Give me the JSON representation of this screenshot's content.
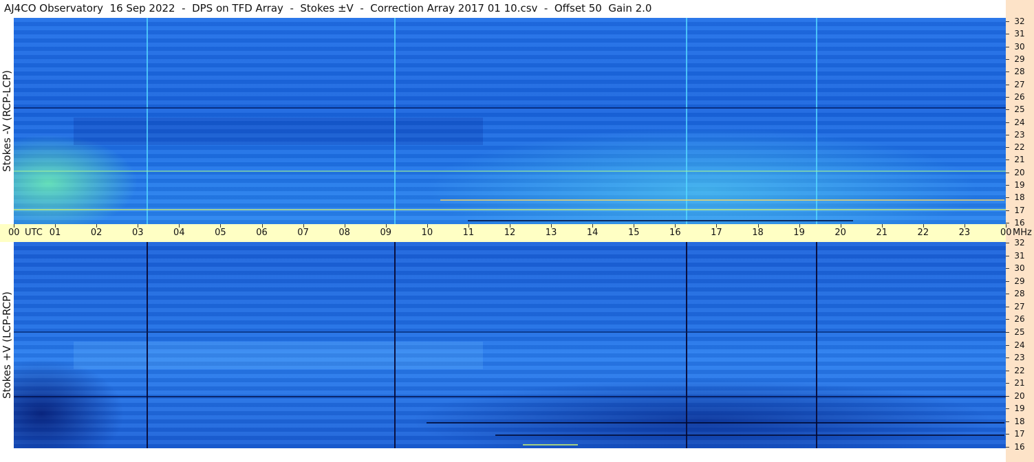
{
  "header": {
    "title": "AJ4CO Observatory  16 Sep 2022  -  DPS on TFD Array  -  Stokes ±V  -  Correction Array 2017 01 10.csv  -  Offset 50  Gain 2.0"
  },
  "panels": [
    {
      "label": "Stokes -V (RCP-LCP)"
    },
    {
      "label": "Stokes +V (LCP-RCP)"
    }
  ],
  "axis": {
    "x_labels": [
      "00",
      "01",
      "02",
      "03",
      "04",
      "05",
      "06",
      "07",
      "08",
      "09",
      "10",
      "11",
      "12",
      "13",
      "14",
      "15",
      "16",
      "17",
      "18",
      "19",
      "20",
      "21",
      "22",
      "23",
      "00"
    ],
    "x_unit": "UTC",
    "y_unit": "MHz",
    "y_labels": [
      "32",
      "31",
      "30",
      "29",
      "28",
      "27",
      "26",
      "25",
      "24",
      "23",
      "22",
      "21",
      "20",
      "19",
      "18",
      "17",
      "16"
    ]
  }
}
